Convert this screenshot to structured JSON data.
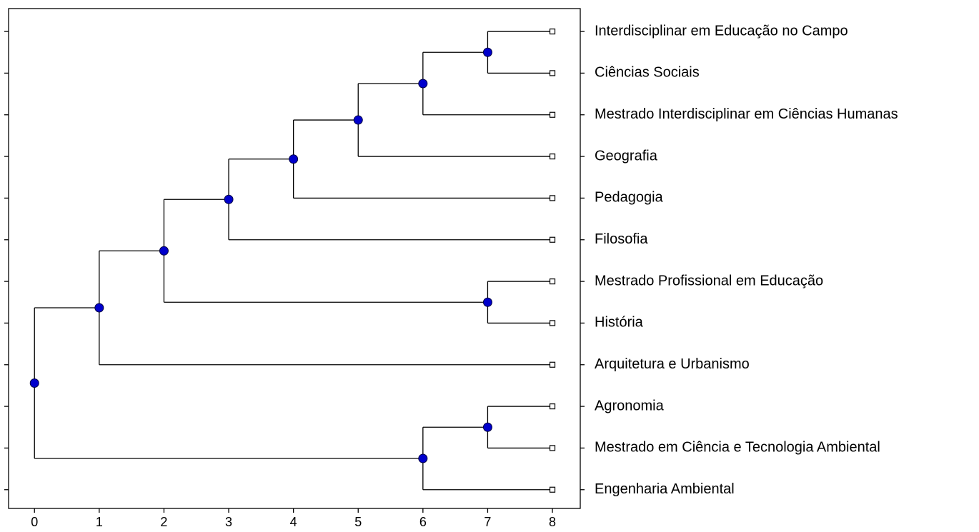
{
  "chart_data": {
    "type": "dendrogram",
    "xlim": [
      -0.4,
      8.43
    ],
    "xticks": [
      0,
      1,
      2,
      3,
      4,
      5,
      6,
      7,
      8
    ],
    "node_color": "#0000cc",
    "tree": {
      "height": 0,
      "children": [
        {
          "height": 1,
          "children": [
            {
              "height": 2,
              "children": [
                {
                  "height": 3,
                  "children": [
                    {
                      "height": 4,
                      "children": [
                        {
                          "height": 5,
                          "children": [
                            {
                              "height": 6,
                              "children": [
                                {
                                  "height": 7,
                                  "children": [
                                    {
                                      "label": "Interdisciplinar em Educação no Campo",
                                      "height": 8
                                    },
                                    {
                                      "label": "Ciências Sociais",
                                      "height": 8
                                    }
                                  ]
                                },
                                {
                                  "label": "Mestrado Interdisciplinar em Ciências Humanas",
                                  "height": 8
                                }
                              ]
                            },
                            {
                              "label": "Geografia",
                              "height": 8
                            }
                          ]
                        },
                        {
                          "label": "Pedagogia",
                          "height": 8
                        }
                      ]
                    },
                    {
                      "label": "Filosofia",
                      "height": 8
                    }
                  ]
                },
                {
                  "height": 7,
                  "children": [
                    {
                      "label": "Mestrado Profissional em Educação",
                      "height": 8
                    },
                    {
                      "label": "História",
                      "height": 8
                    }
                  ]
                }
              ]
            },
            {
              "label": "Arquitetura e Urbanismo",
              "height": 8
            }
          ]
        },
        {
          "height": 6,
          "children": [
            {
              "height": 7,
              "children": [
                {
                  "label": "Agronomia",
                  "height": 8
                },
                {
                  "label": "Mestrado em Ciência e Tecnologia Ambiental",
                  "height": 8
                }
              ]
            },
            {
              "label": "Engenharia Ambiental",
              "height": 8
            }
          ]
        }
      ]
    }
  }
}
